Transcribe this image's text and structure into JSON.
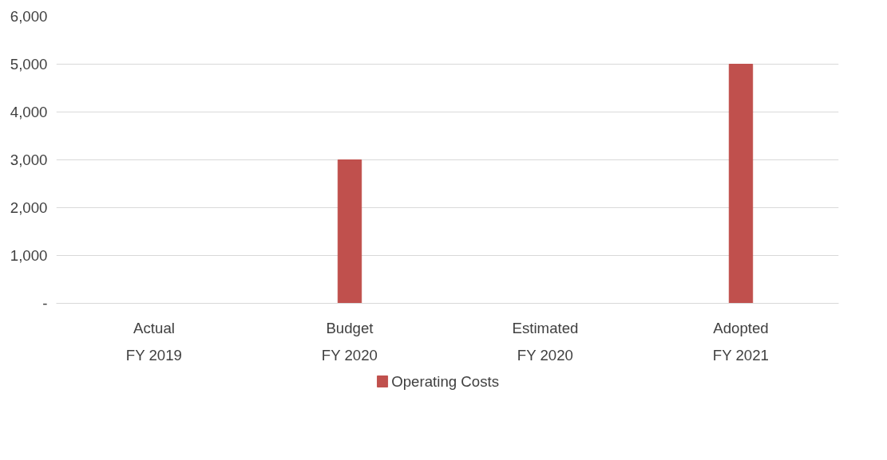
{
  "chart_data": {
    "type": "bar",
    "categories": [
      "Actual\nFY 2019",
      "Budget\nFY 2020",
      "Estimated\nFY 2020",
      "Adopted\nFY 2021"
    ],
    "series": [
      {
        "name": "Operating Costs",
        "color": "#c0504d",
        "values": [
          null,
          3000,
          null,
          5000
        ]
      }
    ],
    "ylim": [
      0,
      6000
    ],
    "yticks": [
      {
        "value": 0,
        "label": "-"
      },
      {
        "value": 1000,
        "label": "1,000"
      },
      {
        "value": 2000,
        "label": "2,000"
      },
      {
        "value": 3000,
        "label": "3,000"
      },
      {
        "value": 4000,
        "label": "4,000"
      },
      {
        "value": 5000,
        "label": "5,000"
      },
      {
        "value": 6000,
        "label": "6,000"
      }
    ],
    "grid": "y",
    "legend": "bottom"
  }
}
